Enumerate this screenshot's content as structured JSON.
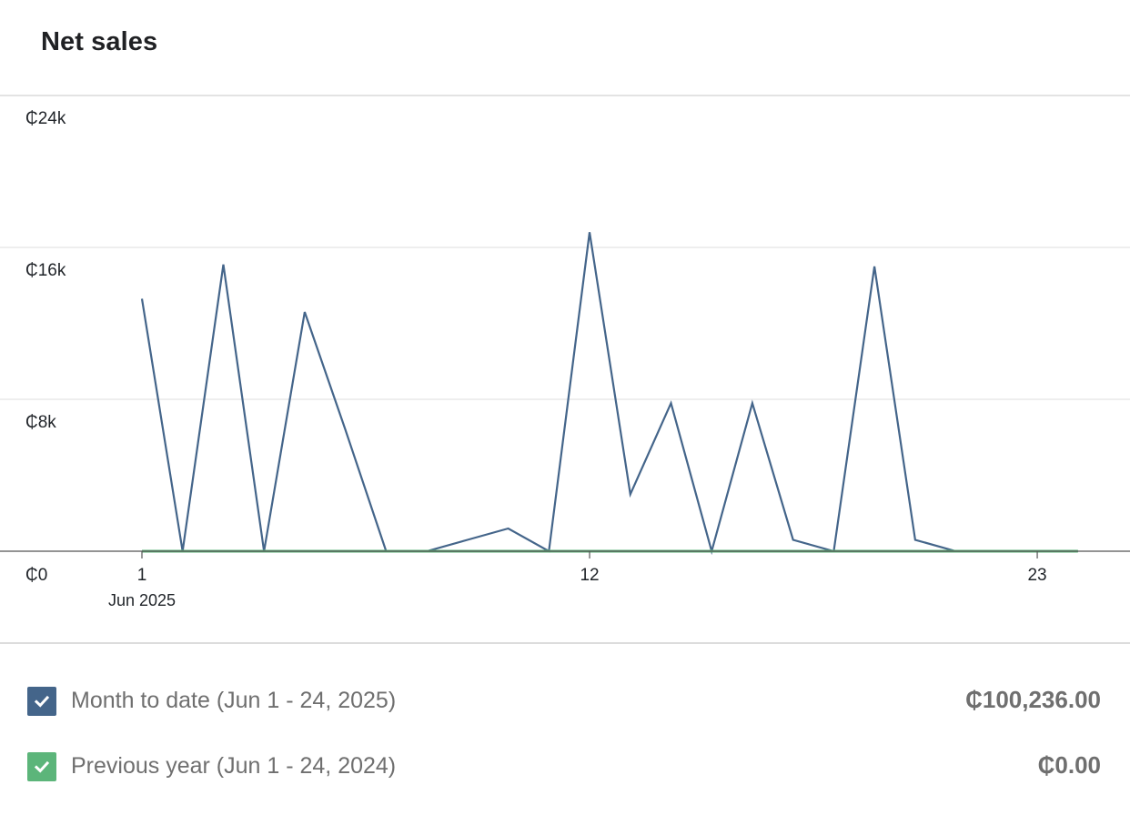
{
  "card": {
    "title": "Net sales"
  },
  "chart_data": {
    "type": "line",
    "x": [
      1,
      2,
      3,
      4,
      5,
      6,
      7,
      8,
      9,
      10,
      11,
      12,
      13,
      14,
      15,
      16,
      17,
      18,
      19,
      20,
      21,
      22,
      23,
      24
    ],
    "x_ticks": [
      {
        "x": 1,
        "label": "1",
        "sublabel": "Jun 2025"
      },
      {
        "x": 12,
        "label": "12",
        "sublabel": ""
      },
      {
        "x": 23,
        "label": "23",
        "sublabel": ""
      }
    ],
    "y_ticks": [
      {
        "value": 0,
        "label": "₵0"
      },
      {
        "value": 8000,
        "label": "₵8k"
      },
      {
        "value": 16000,
        "label": "₵16k"
      },
      {
        "value": 24000,
        "label": "₵24k"
      }
    ],
    "ylim": [
      0,
      24000
    ],
    "grid": true,
    "legend": "bottom",
    "series": [
      {
        "name": "Month to date (Jun 1 - 24, 2025)",
        "color": "#44658a",
        "values": [
          13300,
          0,
          15100,
          0,
          12600,
          6400,
          0,
          0,
          600,
          1200,
          0,
          16800,
          3000,
          7800,
          0,
          7800,
          600,
          0,
          15000,
          600,
          0,
          0,
          0,
          0
        ]
      },
      {
        "name": "Previous year (Jun 1 - 24, 2024)",
        "color": "#5cb57a",
        "values": [
          0,
          0,
          0,
          0,
          0,
          0,
          0,
          0,
          0,
          0,
          0,
          0,
          0,
          0,
          0,
          0,
          0,
          0,
          0,
          0,
          0,
          0,
          0,
          0
        ]
      }
    ]
  },
  "legend": {
    "items": [
      {
        "label": "Month to date (Jun 1 - 24, 2025)",
        "value": "₵100,236.00",
        "color": "#44658a",
        "icon": "checkmark-icon"
      },
      {
        "label": "Previous year (Jun 1 - 24, 2024)",
        "value": "₵0.00",
        "color": "#5cb57a",
        "icon": "checkmark-icon"
      }
    ]
  }
}
